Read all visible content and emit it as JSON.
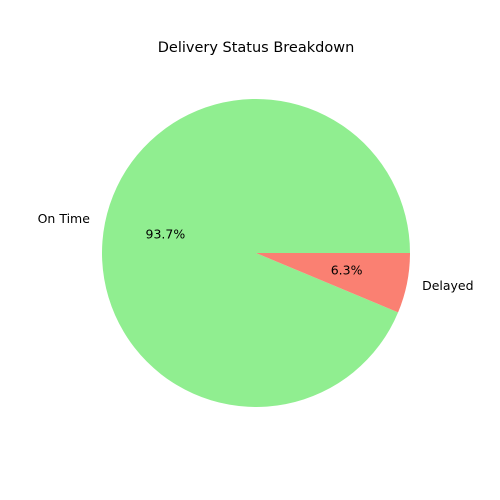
{
  "chart_data": {
    "type": "pie",
    "title": "Delivery Status Breakdown",
    "slices": [
      {
        "label": "On Time",
        "value": 93.7,
        "pct_label": "93.7%",
        "color": "#90ee90"
      },
      {
        "label": "Delayed",
        "value": 6.3,
        "pct_label": "6.3%",
        "color": "#fa8072"
      }
    ],
    "start_angle": "0 degrees (3 o'clock), counter-clockwise",
    "legend": "none"
  }
}
